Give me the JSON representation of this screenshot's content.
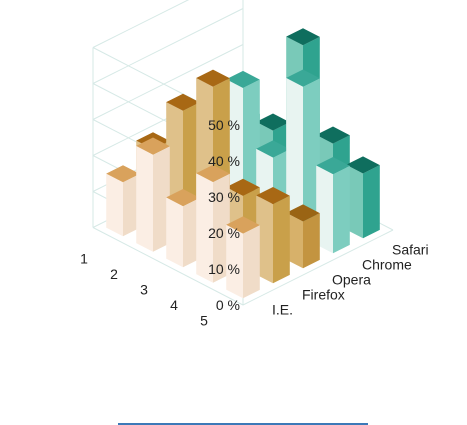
{
  "chart_data": {
    "type": "bar",
    "subtype": "3d-grid-column",
    "categories": [
      "1",
      "2",
      "3",
      "4",
      "5"
    ],
    "series": [
      {
        "name": "I.E.",
        "values": [
          15,
          27,
          17,
          28,
          18
        ]
      },
      {
        "name": "Firefox",
        "values": [
          20,
          35,
          46,
          20,
          22
        ]
      },
      {
        "name": "Opera",
        "values": [
          8,
          12,
          10,
          9,
          13
        ]
      },
      {
        "name": "Chrome",
        "values": [
          20,
          33,
          18,
          42,
          22
        ]
      },
      {
        "name": "Safari",
        "values": [
          15,
          17,
          45,
          22,
          18
        ]
      }
    ],
    "y_ticks": [
      "0 %",
      "10 %",
      "20 %",
      "30 %",
      "40 %",
      "50 %"
    ],
    "ylim": [
      0,
      50
    ],
    "grid": true,
    "colors": {
      "I.E.": {
        "front": "#fbeee4",
        "side": "#f0dcc8",
        "top": "#d9a25c"
      },
      "Firefox": {
        "front": "#dfc18a",
        "side": "#c9a04a",
        "top": "#a86814"
      },
      "Opera": {
        "front": "#d7b16a",
        "side": "#c39440",
        "top": "#9a6414"
      },
      "Chrome": {
        "front": "#e8f4f1",
        "side": "#7dcdbf",
        "top": "#3aa897"
      },
      "Safari": {
        "front": "#79c9b8",
        "side": "#2fa38f",
        "top": "#0f6e5e"
      }
    }
  }
}
